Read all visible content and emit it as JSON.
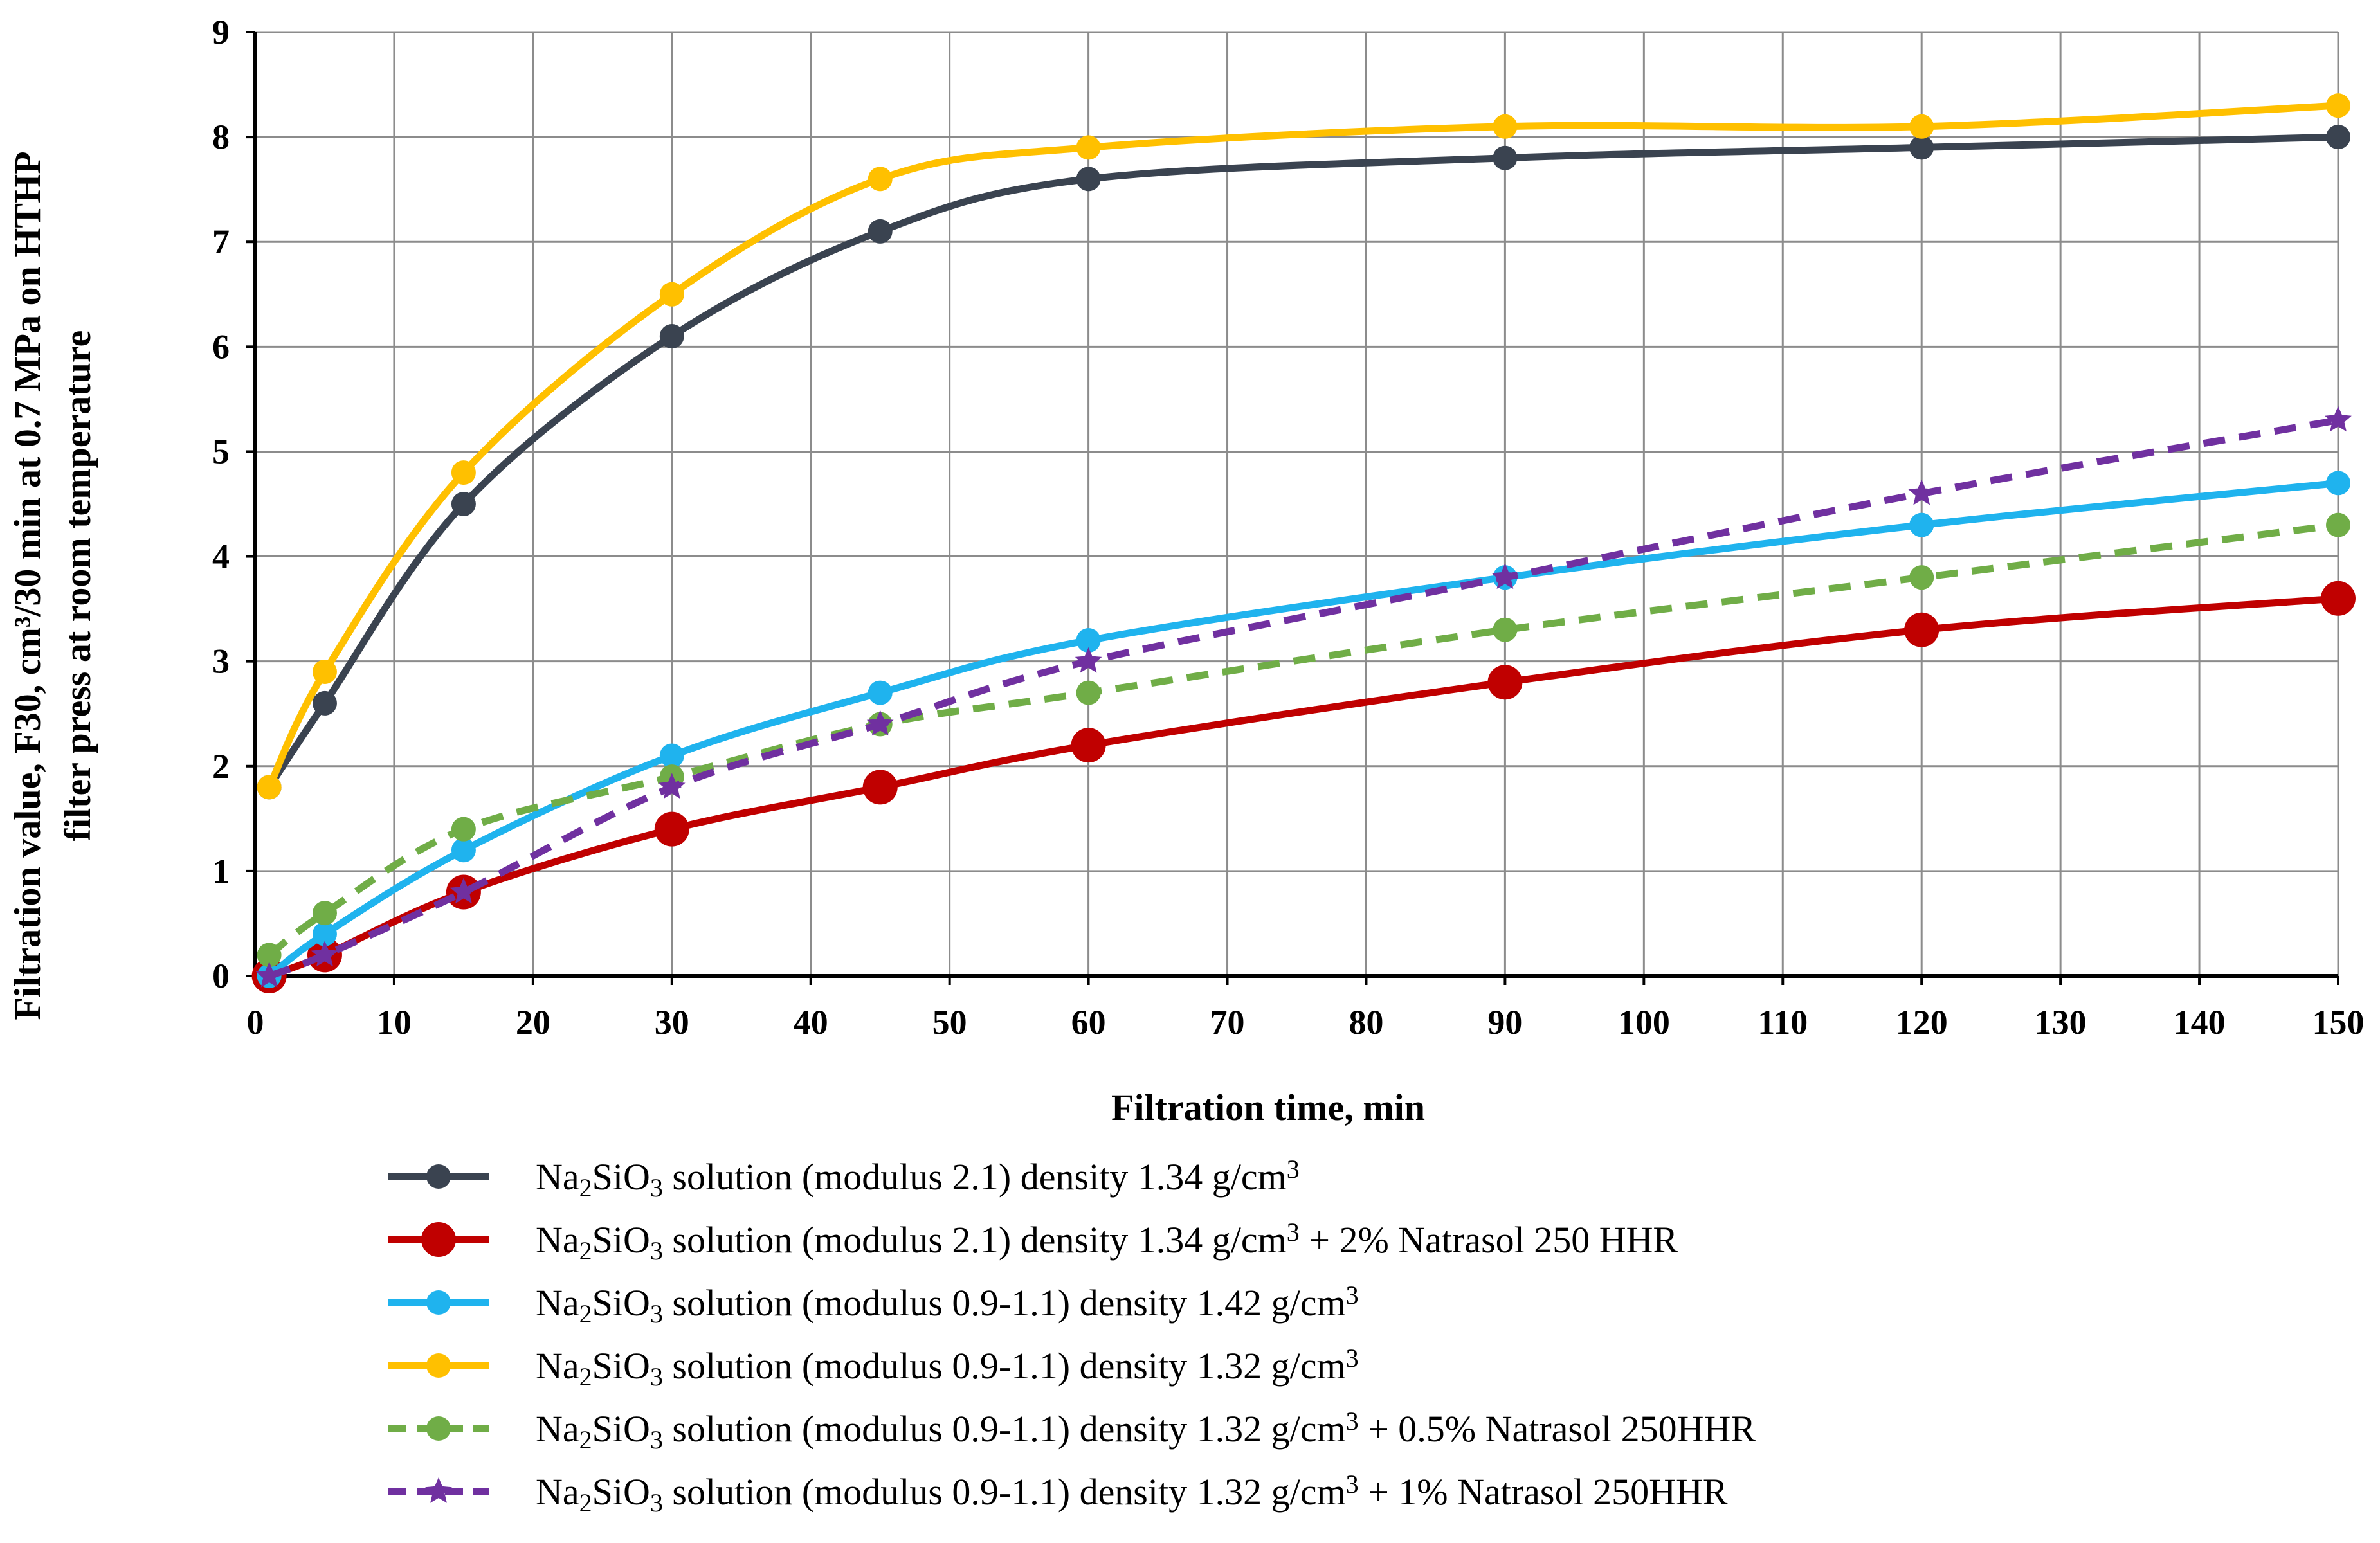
{
  "chart_data": {
    "type": "line",
    "title": "",
    "xlabel": "Filtration time,  min",
    "ylabel_line1": "Filtration value, F30, cm³/30 min at 0.7 MPa on HTHP",
    "ylabel_line2": "filter press at room temperature",
    "xlim": [
      0,
      150
    ],
    "ylim": [
      0,
      9
    ],
    "x_ticks": [
      0,
      10,
      20,
      30,
      40,
      50,
      60,
      70,
      80,
      90,
      100,
      110,
      120,
      130,
      140,
      150
    ],
    "y_ticks": [
      0,
      1,
      2,
      3,
      4,
      5,
      6,
      7,
      8,
      9
    ],
    "grid": true,
    "x": [
      1,
      5,
      15,
      30,
      45,
      60,
      90,
      120,
      150
    ],
    "series": [
      {
        "name": "Na2SiO3 solution (modulus 2.1) density 1.34 g/cm3",
        "prefix": "Na",
        "sub1": "2",
        "mid": "SiO",
        "sub2": "3",
        "rest": " solution (modulus 2.1) density 1.34 g/cm",
        "sup": "3",
        "tail": "",
        "color": "#3a4350",
        "dashed": false,
        "marker": "circle",
        "values": [
          1.8,
          2.6,
          4.5,
          6.1,
          7.1,
          7.6,
          7.8,
          7.9,
          8.0
        ]
      },
      {
        "name": "Na2SiO3 solution (modulus 2.1) density 1.34 g/cm3 + 2% Natrasol 250 HHR",
        "prefix": "Na",
        "sub1": "2",
        "mid": "SiO",
        "sub2": "3",
        "rest": " solution (modulus 2.1) density 1.34 g/cm",
        "sup": "3",
        "tail": " + 2% Natrasol 250 HHR",
        "color": "#c00000",
        "dashed": false,
        "marker": "circle-large",
        "values": [
          0.0,
          0.2,
          0.8,
          1.4,
          1.8,
          2.2,
          2.8,
          3.3,
          3.6
        ]
      },
      {
        "name": "Na2SiO3 solution (modulus 0.9-1.1) density 1.42 g/cm3",
        "prefix": "Na",
        "sub1": "2",
        "mid": "SiO",
        "sub2": "3",
        "rest": " solution (modulus 0.9-1.1) density 1.42 g/cm",
        "sup": "3",
        "tail": "",
        "color": "#1fb3ee",
        "dashed": false,
        "marker": "circle",
        "values": [
          0.0,
          0.4,
          1.2,
          2.1,
          2.7,
          3.2,
          3.8,
          4.3,
          4.7
        ]
      },
      {
        "name": "Na2SiO3 solution (modulus 0.9-1.1) density 1.32 g/cm3",
        "prefix": "Na",
        "sub1": "2",
        "mid": "SiO",
        "sub2": "3",
        "rest": " solution (modulus 0.9-1.1) density 1.32 g/cm",
        "sup": "3",
        "tail": "",
        "color": "#ffc000",
        "dashed": false,
        "marker": "circle",
        "values": [
          1.8,
          2.9,
          4.8,
          6.5,
          7.6,
          7.9,
          8.1,
          8.1,
          8.3
        ]
      },
      {
        "name": "Na2SiO3 solution (modulus 0.9-1.1) density 1.32 g/cm3 + 0.5% Natrasol 250HHR",
        "prefix": "Na",
        "sub1": "2",
        "mid": "SiO",
        "sub2": "3",
        "rest": " solution (modulus 0.9-1.1) density 1.32 g/cm",
        "sup": "3",
        "tail": " + 0.5% Natrasol 250HHR",
        "color": "#70ad47",
        "dashed": true,
        "marker": "circle",
        "values": [
          0.2,
          0.6,
          1.4,
          1.9,
          2.4,
          2.7,
          3.3,
          3.8,
          4.3
        ]
      },
      {
        "name": "Na2SiO3 solution (modulus 0.9-1.1) density 1.32 g/cm3 + 1% Natrasol 250HHR",
        "prefix": "Na",
        "sub1": "2",
        "mid": "SiO",
        "sub2": "3",
        "rest": " solution (modulus 0.9-1.1) density 1.32 g/cm",
        "sup": "3",
        "tail": " + 1% Natrasol 250HHR",
        "color": "#7030a0",
        "dashed": true,
        "marker": "star",
        "values": [
          0.0,
          0.2,
          0.8,
          1.8,
          2.4,
          3.0,
          3.8,
          4.6,
          5.3
        ]
      }
    ]
  }
}
